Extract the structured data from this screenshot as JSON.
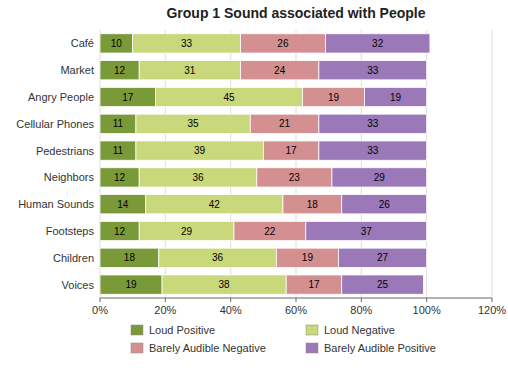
{
  "chart_data": {
    "type": "bar",
    "orientation": "horizontal",
    "stacked": true,
    "data_labels": true,
    "grid": true,
    "legend": "bottom",
    "title": "Group 1   Sound associated with People",
    "categories": [
      "Café",
      "Market",
      "Angry People",
      "Cellular Phones",
      "Pedestrians",
      "Neighbors",
      "Human Sounds",
      "Footsteps",
      "Children",
      "Voices"
    ],
    "series": [
      {
        "name": "Loud Positive",
        "color": "#7a9a3a",
        "values": [
          10,
          12,
          17,
          11,
          11,
          12,
          14,
          12,
          18,
          19
        ]
      },
      {
        "name": "Loud Negative",
        "color": "#c8d87a",
        "values": [
          33,
          31,
          45,
          35,
          39,
          36,
          42,
          29,
          36,
          38
        ]
      },
      {
        "name": "Barely Audible Negative",
        "color": "#d49090",
        "values": [
          26,
          24,
          19,
          21,
          17,
          23,
          18,
          22,
          19,
          17
        ]
      },
      {
        "name": "Barely Audible Positive",
        "color": "#9b79b8",
        "values": [
          32,
          33,
          19,
          33,
          33,
          29,
          26,
          37,
          27,
          25
        ]
      }
    ],
    "xlim": [
      0,
      120
    ],
    "xticks": [
      {
        "value": 0,
        "label": "0%"
      },
      {
        "value": 20,
        "label": "20%"
      },
      {
        "value": 40,
        "label": "40%"
      },
      {
        "value": 60,
        "label": "60%"
      },
      {
        "value": 80,
        "label": "80%"
      },
      {
        "value": 100,
        "label": "100%"
      },
      {
        "value": 120,
        "label": "120%"
      }
    ]
  }
}
